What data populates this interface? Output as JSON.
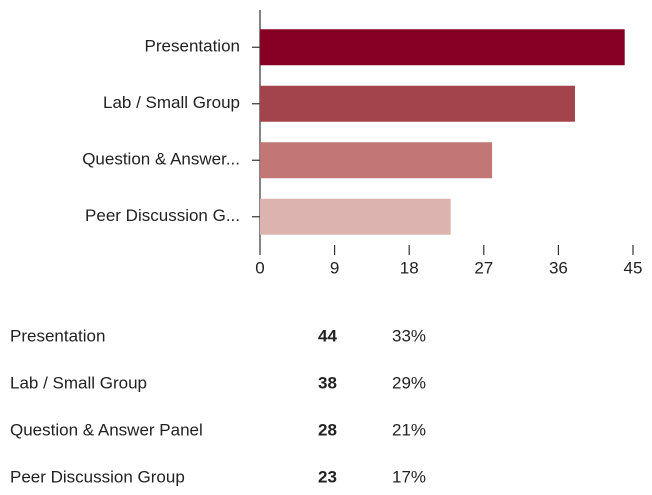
{
  "chart_data": {
    "type": "bar",
    "orientation": "horizontal",
    "categories": [
      "Presentation",
      "Lab / Small Group",
      "Question & Answer...",
      "Peer Discussion  G..."
    ],
    "values": [
      44,
      38,
      28,
      23
    ],
    "colors": [
      "#870024",
      "#a3444c",
      "#c27676",
      "#dcb3ae"
    ],
    "xlim": [
      0,
      45
    ],
    "xticks": [
      0,
      9,
      18,
      27,
      36,
      45
    ]
  },
  "table": {
    "rows": [
      [
        "Presentation",
        "44",
        "33%"
      ],
      [
        "Lab / Small Group",
        "38",
        "29%"
      ],
      [
        "Question & Answer Panel",
        "28",
        "21%"
      ],
      [
        "Peer Discussion Group",
        "23",
        "17%"
      ]
    ]
  }
}
